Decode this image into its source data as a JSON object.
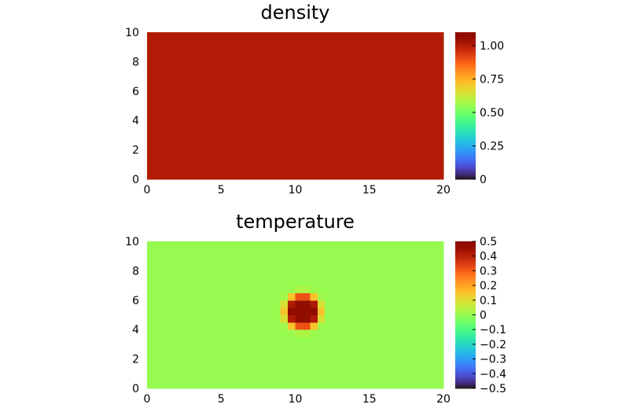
{
  "chart_data": [
    {
      "type": "heatmap",
      "title": "density",
      "xlim": [
        0,
        20
      ],
      "ylim": [
        0,
        10
      ],
      "x_ticks": [
        "0",
        "5",
        "10",
        "15",
        "20"
      ],
      "y_ticks": [
        "0",
        "2",
        "4",
        "6",
        "8",
        "10"
      ],
      "grid": [
        20,
        10
      ],
      "field": "uniform",
      "value": 1.0,
      "colorbar": {
        "colormap": "turbo",
        "range": [
          0,
          1.1
        ],
        "ticks": [
          {
            "value": 0,
            "label": "0"
          },
          {
            "value": 0.25,
            "label": "0.25"
          },
          {
            "value": 0.5,
            "label": "0.50"
          },
          {
            "value": 0.75,
            "label": "0.75"
          },
          {
            "value": 1.0,
            "label": "1.00"
          }
        ]
      }
    },
    {
      "type": "heatmap",
      "title": "temperature",
      "xlim": [
        0,
        20
      ],
      "ylim": [
        0,
        10
      ],
      "x_ticks": [
        "0",
        "5",
        "10",
        "15",
        "20"
      ],
      "y_ticks": [
        "0",
        "2",
        "4",
        "6",
        "8",
        "10"
      ],
      "grid": [
        40,
        20
      ],
      "field": "blob",
      "background": 0.0,
      "bottom_boundary": 0.5,
      "top_boundary": -0.5,
      "blob": {
        "center": [
          10.5,
          5.25
        ],
        "peak": 0.6,
        "radius": 1.15
      },
      "colorbar": {
        "colormap": "turbo",
        "range": [
          -0.5,
          0.5
        ],
        "ticks": [
          {
            "value": 0.5,
            "label": "0.5"
          },
          {
            "value": 0.4,
            "label": "0.4"
          },
          {
            "value": 0.3,
            "label": "0.3"
          },
          {
            "value": 0.2,
            "label": "0.2"
          },
          {
            "value": 0.1,
            "label": "0.1"
          },
          {
            "value": 0,
            "label": "0"
          },
          {
            "value": -0.1,
            "label": "−0.1"
          },
          {
            "value": -0.2,
            "label": "−0.2"
          },
          {
            "value": -0.3,
            "label": "−0.3"
          },
          {
            "value": -0.4,
            "label": "−0.4"
          },
          {
            "value": -0.5,
            "label": "−0.5"
          }
        ]
      }
    }
  ]
}
